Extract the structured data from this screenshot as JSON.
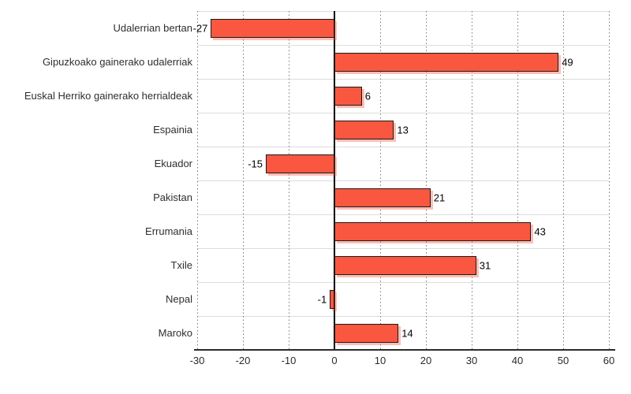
{
  "chart_data": {
    "type": "bar",
    "orientation": "horizontal",
    "title": "",
    "xlabel": "",
    "ylabel": "",
    "categories": [
      "Udalerrian bertan",
      "Gipuzkoako gainerako udalerriak",
      "Euskal Herriko gainerako herrialdeak",
      "Espainia",
      "Ekuador",
      "Pakistan",
      "Errumania",
      "Txile",
      "Nepal",
      "Maroko"
    ],
    "values": [
      -27,
      49,
      6,
      13,
      -15,
      21,
      43,
      31,
      -1,
      14
    ],
    "value_labels": [
      "-27",
      "49",
      "6",
      "13",
      "-15",
      "21",
      "43",
      "31",
      "-1",
      "14"
    ],
    "xlim": [
      -30,
      60
    ],
    "xticks": [
      -30,
      -20,
      -10,
      0,
      10,
      20,
      30,
      40,
      50,
      60
    ],
    "xtick_labels": [
      "-30",
      "-20",
      "-10",
      "0",
      "10",
      "20",
      "30",
      "40",
      "50",
      "60"
    ],
    "grid": "vertical-dotted",
    "row_separators": true,
    "legend": "none",
    "colors": {
      "bar_fill": "#F95740",
      "bar_border": "#1A1A1A",
      "bar_shadow": "rgba(249,87,64,0.38)",
      "row_separator": "#DCDCDC",
      "gridline": "#7A7A7A",
      "zero_line": "#000000",
      "axis_line": "#2B2B2B",
      "text": "#2E2E2E",
      "background": "#FFFFFF"
    }
  }
}
